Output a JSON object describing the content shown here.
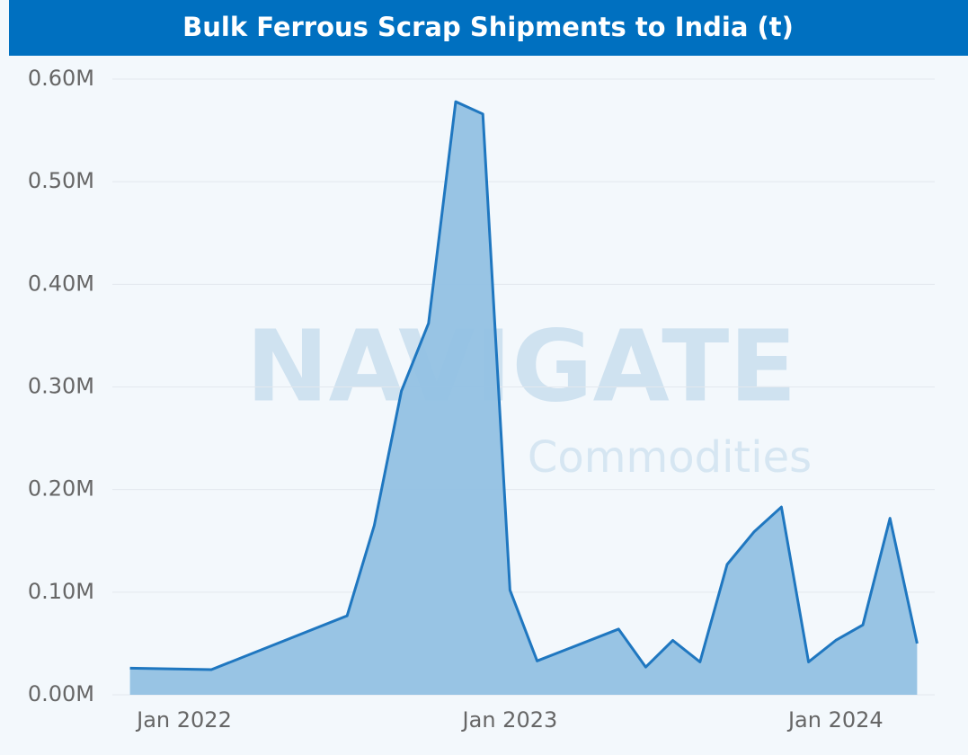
{
  "chart_data": {
    "type": "area",
    "title": "Bulk Ferrous Scrap Shipments to India (t)",
    "watermark": [
      "NAVIGATE",
      "Commodities"
    ],
    "x": [
      "2021-11",
      "2022-02",
      "2022-07",
      "2022-08",
      "2022-09",
      "2022-10",
      "2022-11",
      "2022-12",
      "2023-01",
      "2023-02",
      "2023-05",
      "2023-06",
      "2023-07",
      "2023-08",
      "2023-09",
      "2023-10",
      "2023-11",
      "2023-12",
      "2024-01",
      "2024-02",
      "2024-03",
      "2024-04"
    ],
    "values": [
      26000,
      24500,
      77000,
      165000,
      296000,
      362000,
      578000,
      566000,
      102000,
      33000,
      64000,
      27000,
      53000,
      32000,
      127000,
      159000,
      183000,
      32000,
      53000,
      68000,
      172000,
      50000
    ],
    "color": "#1f77c0",
    "fill": "#92c1e3",
    "ylim": [
      0,
      600000
    ],
    "yticks": [
      {
        "value": 0,
        "label": "0.00M"
      },
      {
        "value": 100000,
        "label": "0.10M"
      },
      {
        "value": 200000,
        "label": "0.20M"
      },
      {
        "value": 300000,
        "label": "0.30M"
      },
      {
        "value": 400000,
        "label": "0.40M"
      },
      {
        "value": 500000,
        "label": "0.50M"
      },
      {
        "value": 600000,
        "label": "0.60M"
      }
    ],
    "xticks": [
      {
        "value": "2022-01",
        "label": "Jan 2022"
      },
      {
        "value": "2023-01",
        "label": "Jan 2023"
      },
      {
        "value": "2024-01",
        "label": "Jan 2024"
      }
    ],
    "grid": true
  }
}
